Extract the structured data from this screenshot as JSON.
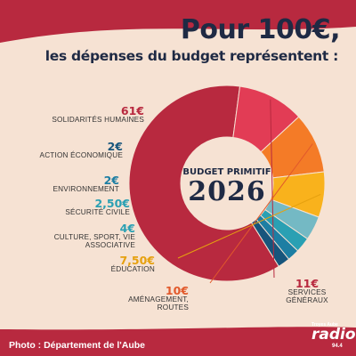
{
  "title": {
    "line1": "Pour 100€,",
    "line2": "les dépenses du budget représentent :"
  },
  "center": {
    "label": "BUDGET PRIMITIF",
    "year": "2026"
  },
  "credit": "Photo : Département de l'Aube",
  "logo": {
    "small": "Troyes Aube",
    "name": "radio",
    "frequency": "94.4"
  },
  "colors": {
    "background": "#b8293f",
    "panel": "#f6e2d3",
    "text": "#1f2a44"
  },
  "chart_data": {
    "type": "pie",
    "categories": [
      "SOLIDARITÉS HUMAINES",
      "SERVICES GÉNÉRAUX",
      "AMÉNAGEMENT, ROUTES",
      "ÉDUCATION",
      "CULTURE, SPORT, VIE ASSOCIATIVE",
      "SÉCURITÉ CIVILE",
      "ENVIRONNEMENT",
      "ACTION ÉCONOMIQUE"
    ],
    "values": [
      61,
      11,
      10,
      7.5,
      4,
      2.5,
      2,
      2
    ],
    "value_labels": [
      "61€",
      "11€",
      "10€",
      "7,50€",
      "4€",
      "2,50€",
      "2€",
      "2€"
    ],
    "colors": [
      "#b8293f",
      "#e23c55",
      "#f47b27",
      "#f9b21c",
      "#74b9c4",
      "#2aa0b3",
      "#1d7ea3",
      "#17557c"
    ],
    "label_colors": [
      "#b8293f",
      "#b8293f",
      "#e2592b",
      "#e6a10f",
      "#2aa0b3",
      "#2aa0b3",
      "#1d7ea3",
      "#17557c"
    ]
  }
}
